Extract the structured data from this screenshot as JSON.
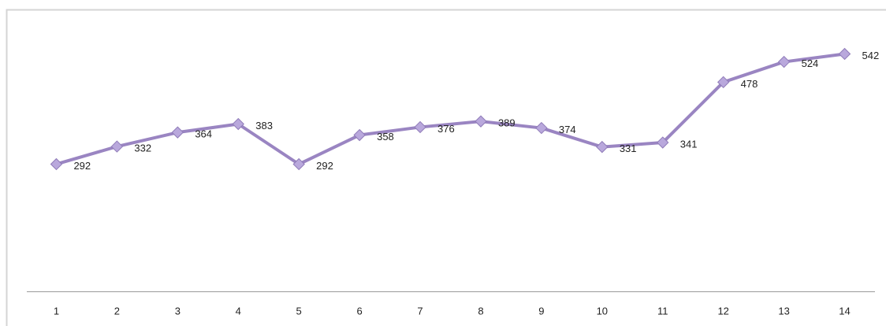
{
  "chart_data": {
    "type": "line",
    "categories": [
      "1",
      "2",
      "3",
      "4",
      "5",
      "6",
      "7",
      "8",
      "9",
      "10",
      "11",
      "12",
      "13",
      "14"
    ],
    "values": [
      292,
      332,
      364,
      383,
      292,
      358,
      376,
      389,
      374,
      331,
      341,
      478,
      524,
      542
    ],
    "color": "#9a85c2",
    "ylim": [
      0,
      600
    ]
  }
}
